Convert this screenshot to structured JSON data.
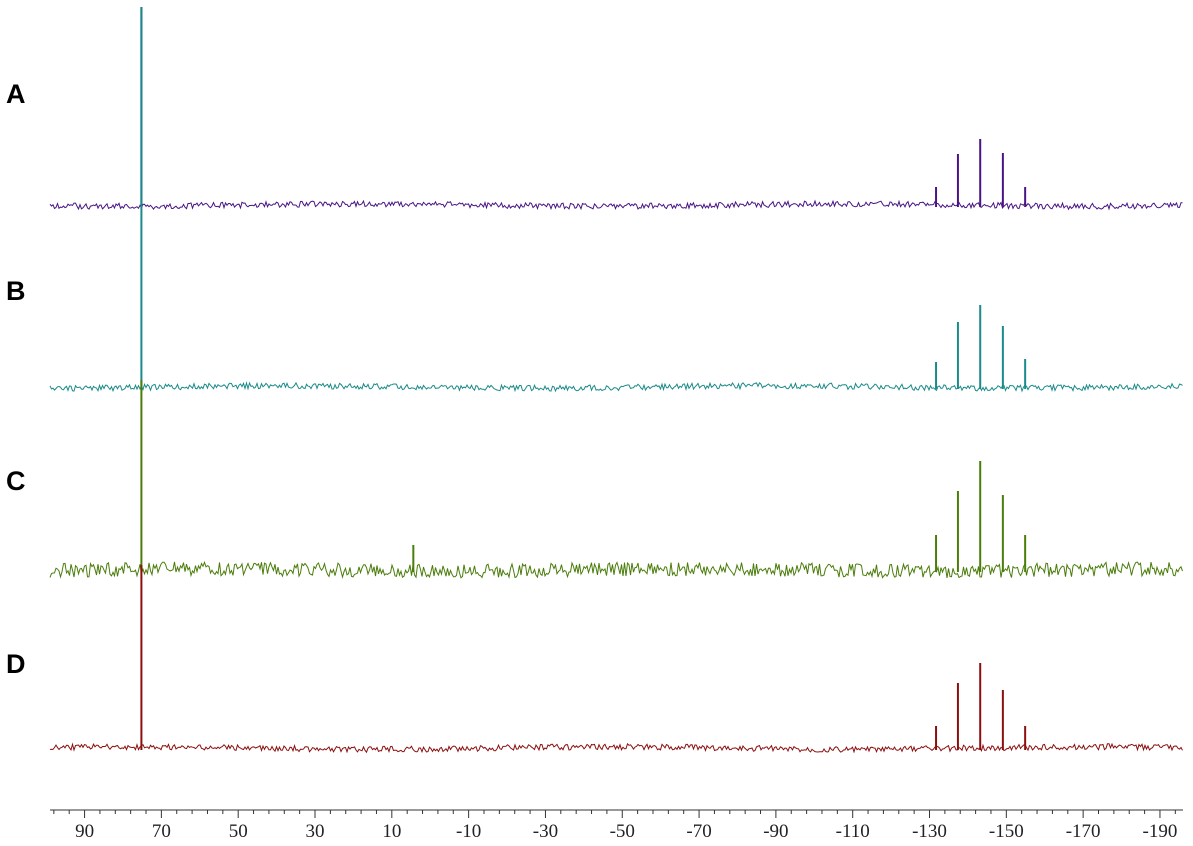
{
  "chart_data": {
    "type": "line",
    "xlim": [
      99,
      -196
    ],
    "xticks": [
      90,
      70,
      50,
      30,
      10,
      -10,
      -30,
      -50,
      -70,
      -90,
      -110,
      -130,
      -150,
      -170,
      -190
    ],
    "series": [
      {
        "name": "A",
        "color": "#4a1486",
        "x": [
          75.2,
          -131.7,
          -137.4,
          -143.2,
          -149.1,
          -154.9
        ],
        "values": [
          198,
          18,
          51,
          66,
          52,
          18
        ]
      },
      {
        "name": "B",
        "color": "#1b8a8a",
        "x": [
          75.2,
          -131.7,
          -137.4,
          -143.2,
          -149.1,
          -154.9
        ],
        "values": [
          380,
          25,
          65,
          82,
          61,
          28
        ]
      },
      {
        "name": "C",
        "color": "#4a7d0a",
        "x": [
          75.2,
          4.4,
          -131.7,
          -137.4,
          -143.2,
          -149.1,
          -154.9
        ],
        "values": [
          190,
          25,
          35,
          79,
          109,
          75,
          35
        ]
      },
      {
        "name": "D",
        "color": "#8b0f0f",
        "x": [
          75.2,
          -131.7,
          -137.4,
          -143.2,
          -149.1,
          -154.9
        ],
        "values": [
          183,
          22,
          65,
          85,
          58,
          22
        ]
      }
    ]
  }
}
